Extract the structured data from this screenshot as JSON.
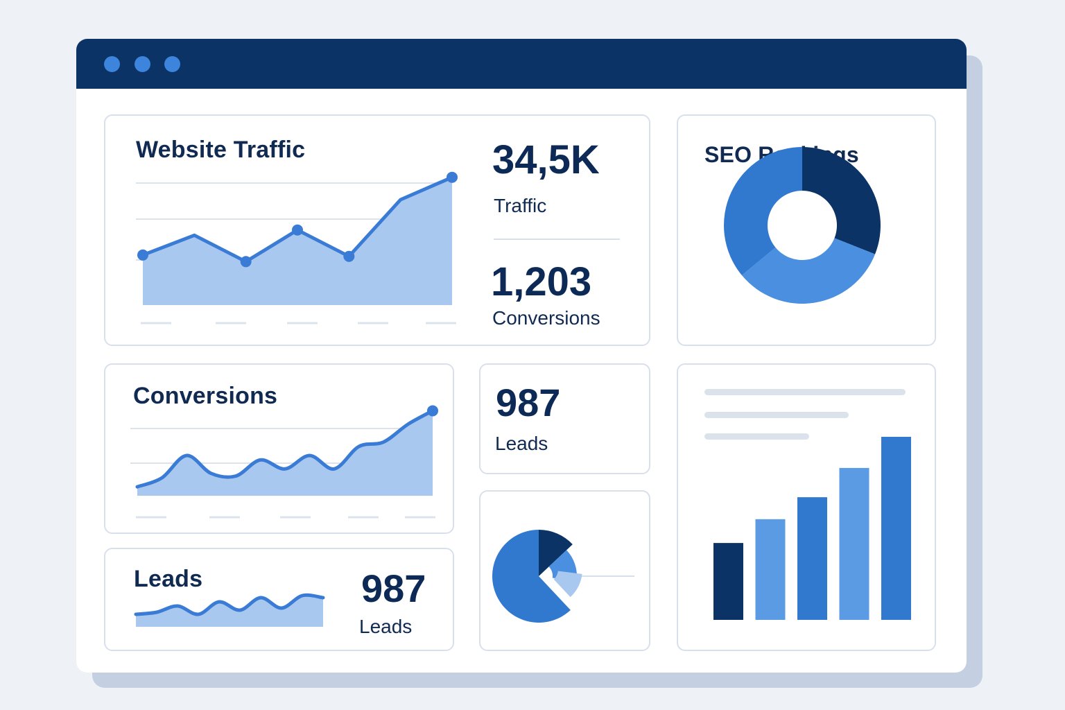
{
  "window": {
    "controls": [
      "window-dot-1",
      "window-dot-2",
      "window-dot-3"
    ]
  },
  "colors": {
    "titlebar": "#0b3366",
    "accent": "#3a7bd5",
    "area_fill": "#a9c8f0",
    "dark_blue": "#0b3366",
    "mid_blue": "#3178cf",
    "light_blue": "#5a9be3",
    "pale_blue": "#a9c8f0"
  },
  "website_traffic": {
    "title": "Website Traffic",
    "traffic_value": "34,5K",
    "traffic_label": "Traffic",
    "conversions_value": "1,203",
    "conversions_label": "Conversions"
  },
  "seo_rankings": {
    "title": "SEO Rankings"
  },
  "conversions_card": {
    "title": "Conversions"
  },
  "leads_stat": {
    "value": "987",
    "label": "Leads"
  },
  "leads_card": {
    "title": "Leads",
    "value": "987",
    "label": "Leads"
  },
  "chart_data": [
    {
      "type": "area",
      "title": "Website Traffic",
      "series": [
        {
          "values": [
            38,
            53,
            33,
            57,
            37,
            80,
            97
          ]
        }
      ],
      "x": [
        0,
        1,
        2,
        3,
        4,
        5,
        6
      ],
      "ylim": [
        0,
        100
      ],
      "grid": true
    },
    {
      "type": "pie",
      "title": "SEO Rankings",
      "donut": true,
      "slices": [
        {
          "value": 31,
          "color": "#0b3366"
        },
        {
          "value": 33,
          "color": "#4a8fe0"
        },
        {
          "value": 36,
          "color": "#3178cf"
        }
      ]
    },
    {
      "type": "area",
      "title": "Conversions",
      "series": [
        {
          "values": [
            10,
            20,
            45,
            25,
            22,
            40,
            30,
            45,
            30,
            55,
            60,
            80,
            95
          ]
        }
      ],
      "x": [
        0,
        1,
        2,
        3,
        4,
        5,
        6,
        7,
        8,
        9,
        10,
        11,
        12
      ],
      "ylim": [
        0,
        100
      ],
      "grid": true
    },
    {
      "type": "area",
      "title": "Leads",
      "series": [
        {
          "values": [
            30,
            35,
            50,
            30,
            60,
            40,
            70,
            45,
            75,
            70
          ]
        }
      ],
      "x": [
        0,
        1,
        2,
        3,
        4,
        5,
        6,
        7,
        8,
        9
      ],
      "ylim": [
        0,
        100
      ]
    },
    {
      "type": "pie",
      "exploded": true,
      "slices": [
        {
          "value": 62,
          "color": "#3178cf"
        },
        {
          "value": 13,
          "color": "#0b3366"
        },
        {
          "value": 14,
          "color": "#4a8fe0"
        },
        {
          "value": 11,
          "color": "#a9c8f0"
        }
      ]
    },
    {
      "type": "bar",
      "categories": [
        "1",
        "2",
        "3",
        "4",
        "5"
      ],
      "values": [
        42,
        55,
        67,
        83,
        100
      ],
      "ylim": [
        0,
        100
      ],
      "colors": [
        "#0b3366",
        "#5a9be3",
        "#3178cf",
        "#5a9be3",
        "#3178cf"
      ]
    }
  ]
}
